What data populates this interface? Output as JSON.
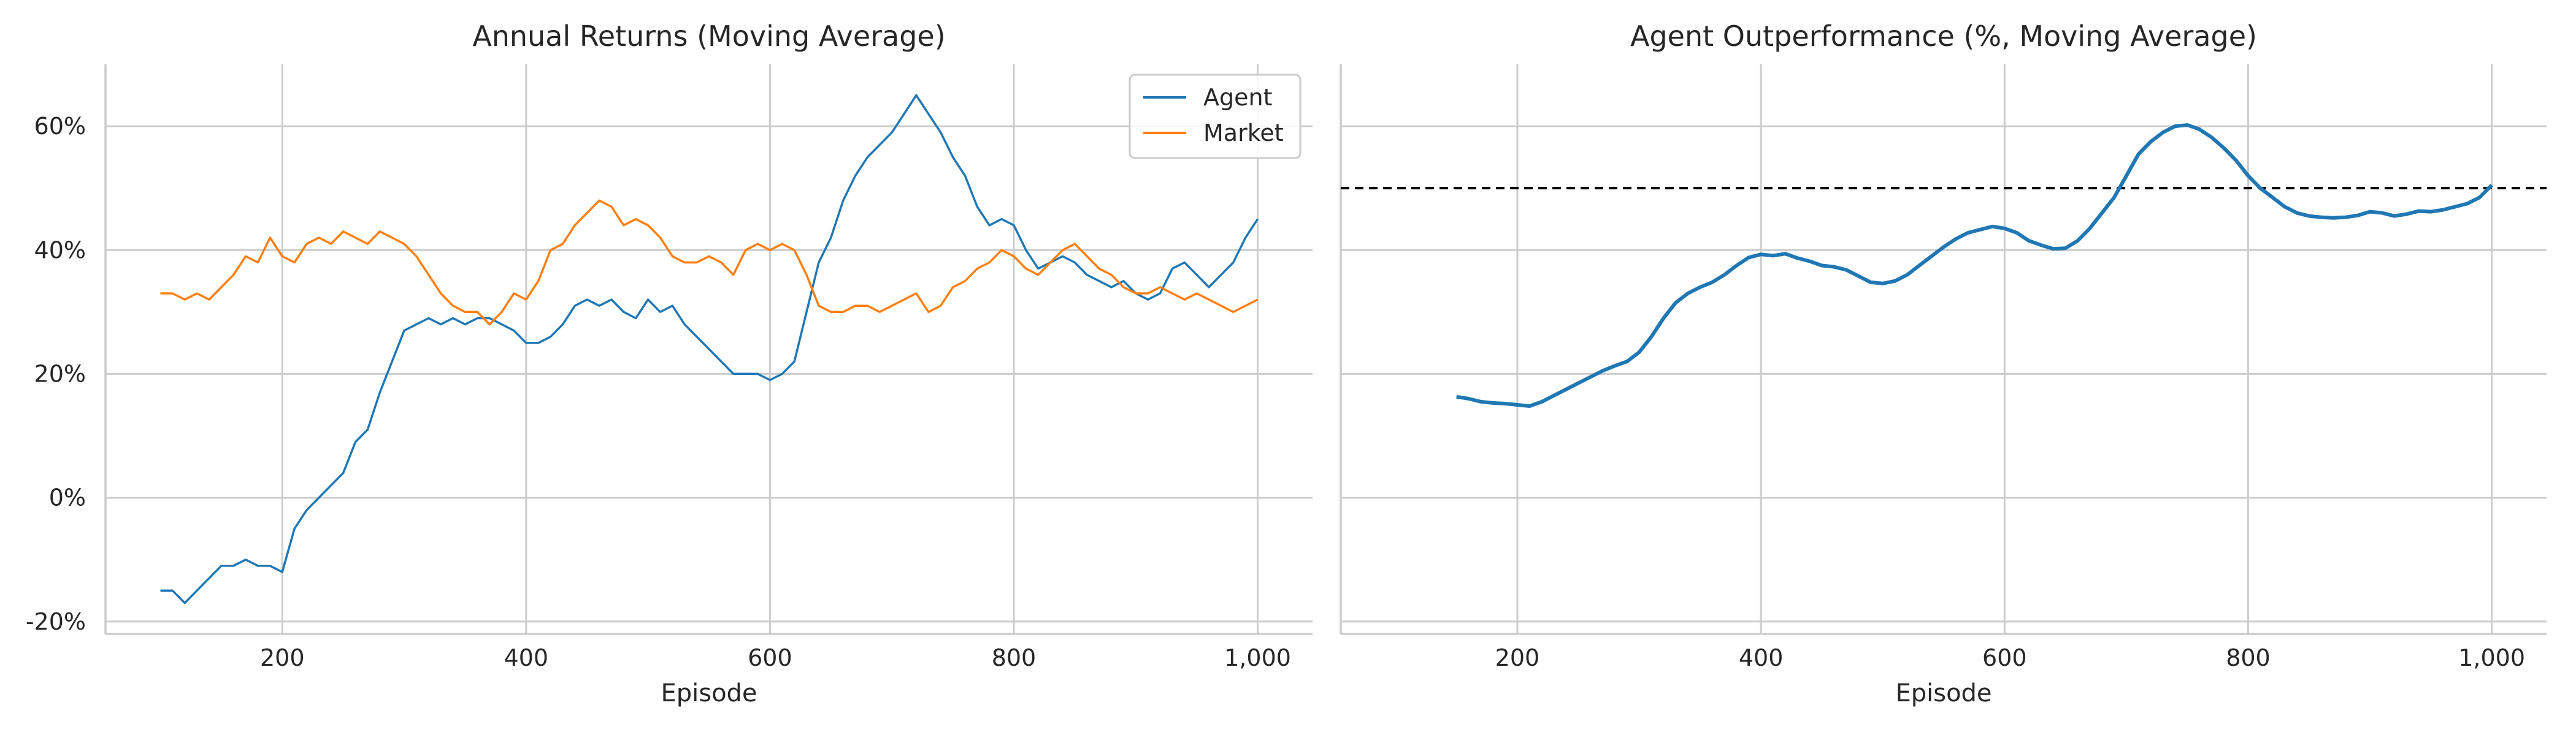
{
  "colors": {
    "agent": "#1f77b4",
    "market": "#ff7f0e",
    "outperformance": "#1f77b4",
    "reference_line": "#000000"
  },
  "chart_data": [
    {
      "type": "line",
      "title": "Annual Returns (Moving Average)",
      "xlabel": "Episode",
      "ylabel": "",
      "xlim": [
        55,
        1045
      ],
      "ylim": [
        -22,
        70
      ],
      "x_ticks": [
        200,
        400,
        600,
        800,
        1000
      ],
      "x_tick_labels": [
        "200",
        "400",
        "600",
        "800",
        "1,000"
      ],
      "y_ticks": [
        -20,
        0,
        20,
        40,
        60
      ],
      "y_tick_labels": [
        "-20%",
        "0%",
        "20%",
        "40%",
        "60%"
      ],
      "grid": true,
      "legend": "top-right",
      "series": [
        {
          "name": "Agent",
          "x": [
            100,
            110,
            120,
            130,
            140,
            150,
            160,
            170,
            180,
            190,
            200,
            210,
            220,
            230,
            240,
            250,
            260,
            270,
            280,
            290,
            300,
            310,
            320,
            330,
            340,
            350,
            360,
            370,
            380,
            390,
            400,
            410,
            420,
            430,
            440,
            450,
            460,
            470,
            480,
            490,
            500,
            510,
            520,
            530,
            540,
            550,
            560,
            570,
            580,
            590,
            600,
            610,
            620,
            630,
            640,
            650,
            660,
            670,
            680,
            690,
            700,
            710,
            720,
            730,
            740,
            750,
            760,
            770,
            780,
            790,
            800,
            810,
            820,
            830,
            840,
            850,
            860,
            870,
            880,
            890,
            900,
            910,
            920,
            930,
            940,
            950,
            960,
            970,
            980,
            990,
            1000
          ],
          "values": [
            -15,
            -15,
            -17,
            -15,
            -13,
            -11,
            -11,
            -10,
            -11,
            -11,
            -12,
            -5,
            -2,
            0,
            2,
            4,
            9,
            11,
            17,
            22,
            27,
            28,
            29,
            28,
            29,
            28,
            29,
            29,
            28,
            27,
            25,
            25,
            26,
            28,
            31,
            32,
            31,
            32,
            30,
            29,
            32,
            30,
            31,
            28,
            26,
            24,
            22,
            20,
            20,
            20,
            19,
            20,
            22,
            30,
            38,
            42,
            48,
            52,
            55,
            57,
            59,
            62,
            65,
            62,
            59,
            55,
            52,
            47,
            44,
            45,
            44,
            40,
            37,
            38,
            39,
            38,
            36,
            35,
            34,
            35,
            33,
            32,
            33,
            37,
            38,
            36,
            34,
            36,
            38,
            42,
            45
          ]
        },
        {
          "name": "Market",
          "x": [
            100,
            110,
            120,
            130,
            140,
            150,
            160,
            170,
            180,
            190,
            200,
            210,
            220,
            230,
            240,
            250,
            260,
            270,
            280,
            290,
            300,
            310,
            320,
            330,
            340,
            350,
            360,
            370,
            380,
            390,
            400,
            410,
            420,
            430,
            440,
            450,
            460,
            470,
            480,
            490,
            500,
            510,
            520,
            530,
            540,
            550,
            560,
            570,
            580,
            590,
            600,
            610,
            620,
            630,
            640,
            650,
            660,
            670,
            680,
            690,
            700,
            710,
            720,
            730,
            740,
            750,
            760,
            770,
            780,
            790,
            800,
            810,
            820,
            830,
            840,
            850,
            860,
            870,
            880,
            890,
            900,
            910,
            920,
            930,
            940,
            950,
            960,
            970,
            980,
            990,
            1000
          ],
          "values": [
            33,
            33,
            32,
            33,
            32,
            34,
            36,
            39,
            38,
            42,
            39,
            38,
            41,
            42,
            41,
            43,
            42,
            41,
            43,
            42,
            41,
            39,
            36,
            33,
            31,
            30,
            30,
            28,
            30,
            33,
            32,
            35,
            40,
            41,
            44,
            46,
            48,
            47,
            44,
            45,
            44,
            42,
            39,
            38,
            38,
            39,
            38,
            36,
            40,
            41,
            40,
            41,
            40,
            36,
            31,
            30,
            30,
            31,
            31,
            30,
            31,
            32,
            33,
            30,
            31,
            34,
            35,
            37,
            38,
            40,
            39,
            37,
            36,
            38,
            40,
            41,
            39,
            37,
            36,
            34,
            33,
            33,
            34,
            33,
            32,
            33,
            32,
            31,
            30,
            31,
            32
          ]
        }
      ]
    },
    {
      "type": "line",
      "title": "Agent Outperformance (%, Moving Average)",
      "xlabel": "Episode",
      "ylabel": "",
      "xlim": [
        55,
        1045
      ],
      "ylim": [
        -22,
        70
      ],
      "x_ticks": [
        200,
        400,
        600,
        800,
        1000
      ],
      "x_tick_labels": [
        "200",
        "400",
        "600",
        "800",
        "1,000"
      ],
      "y_ticks": [
        -20,
        0,
        20,
        40,
        60
      ],
      "grid": true,
      "reference_line": {
        "y": 50,
        "style": "dashed"
      },
      "series": [
        {
          "name": "",
          "x": [
            150,
            160,
            170,
            180,
            190,
            200,
            210,
            220,
            230,
            240,
            250,
            260,
            270,
            280,
            290,
            300,
            310,
            320,
            330,
            340,
            350,
            360,
            370,
            380,
            390,
            400,
            410,
            420,
            430,
            440,
            450,
            460,
            470,
            480,
            490,
            500,
            510,
            520,
            530,
            540,
            550,
            560,
            570,
            580,
            590,
            600,
            610,
            620,
            630,
            640,
            650,
            660,
            670,
            680,
            690,
            700,
            710,
            720,
            730,
            740,
            750,
            760,
            770,
            780,
            790,
            800,
            810,
            820,
            830,
            840,
            850,
            860,
            870,
            880,
            890,
            900,
            910,
            920,
            930,
            940,
            950,
            960,
            970,
            980,
            990,
            1000
          ],
          "values": [
            16.3,
            16.0,
            15.5,
            15.3,
            15.2,
            15.0,
            14.8,
            15.5,
            16.5,
            17.5,
            18.5,
            19.5,
            20.5,
            21.3,
            22.0,
            23.5,
            26,
            29,
            31.5,
            33,
            34,
            34.8,
            36,
            37.5,
            38.8,
            39.3,
            39.1,
            39.4,
            38.7,
            38.2,
            37.5,
            37.3,
            36.8,
            35.8,
            34.8,
            34.6,
            35.0,
            36.0,
            37.5,
            39.0,
            40.5,
            41.8,
            42.8,
            43.3,
            43.8,
            43.5,
            42.8,
            41.5,
            40.8,
            40.2,
            40.3,
            41.5,
            43.5,
            46,
            48.5,
            52,
            55.5,
            57.5,
            59,
            60,
            60.2,
            59.5,
            58.2,
            56.5,
            54.5,
            52,
            50,
            48.5,
            47,
            46,
            45.5,
            45.3,
            45.2,
            45.3,
            45.6,
            46.2,
            46,
            45.5,
            45.8,
            46.3,
            46.2,
            46.5,
            47,
            47.5,
            48.5,
            50.5
          ]
        }
      ]
    }
  ]
}
